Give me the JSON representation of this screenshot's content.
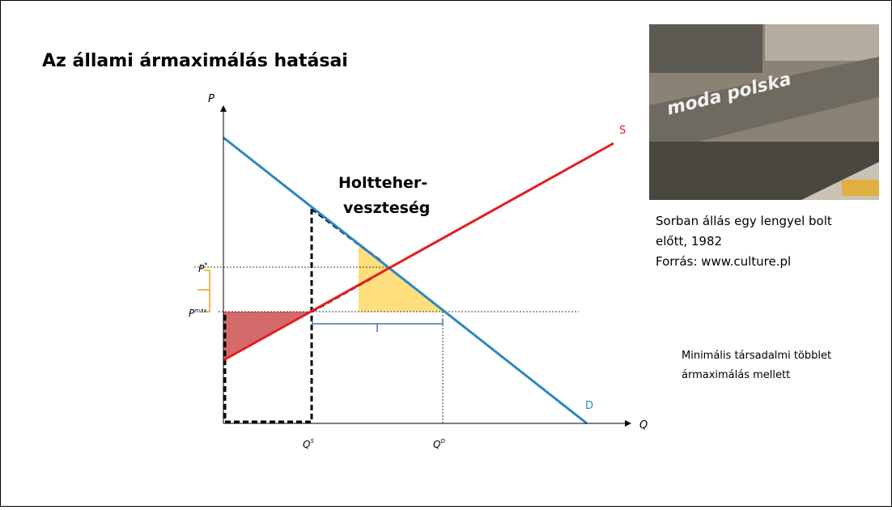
{
  "slide": {
    "title": "Az állami ármaximálás hatásai"
  },
  "diagram": {
    "axis_p": "P",
    "axis_q": "Q",
    "supply": "S",
    "demand": "D",
    "deadweight_1": "Holtteher-",
    "deadweight_2": "veszteség",
    "p_star": {
      "base": "P",
      "sup": "*"
    },
    "p_max": {
      "base": "P",
      "sup": "max"
    },
    "q_s": {
      "base": "Q",
      "sup": "S"
    },
    "q_d": {
      "base": "Q",
      "sup": "D"
    }
  },
  "photo": {
    "sign": "moda polska",
    "caption": [
      "Sorban állás egy lengyel bolt",
      "előtt, 1982",
      "Forrás: www.culture.pl"
    ]
  },
  "note": [
    "Minimális társadalmi többlet",
    "ármaximálás mellett"
  ]
}
